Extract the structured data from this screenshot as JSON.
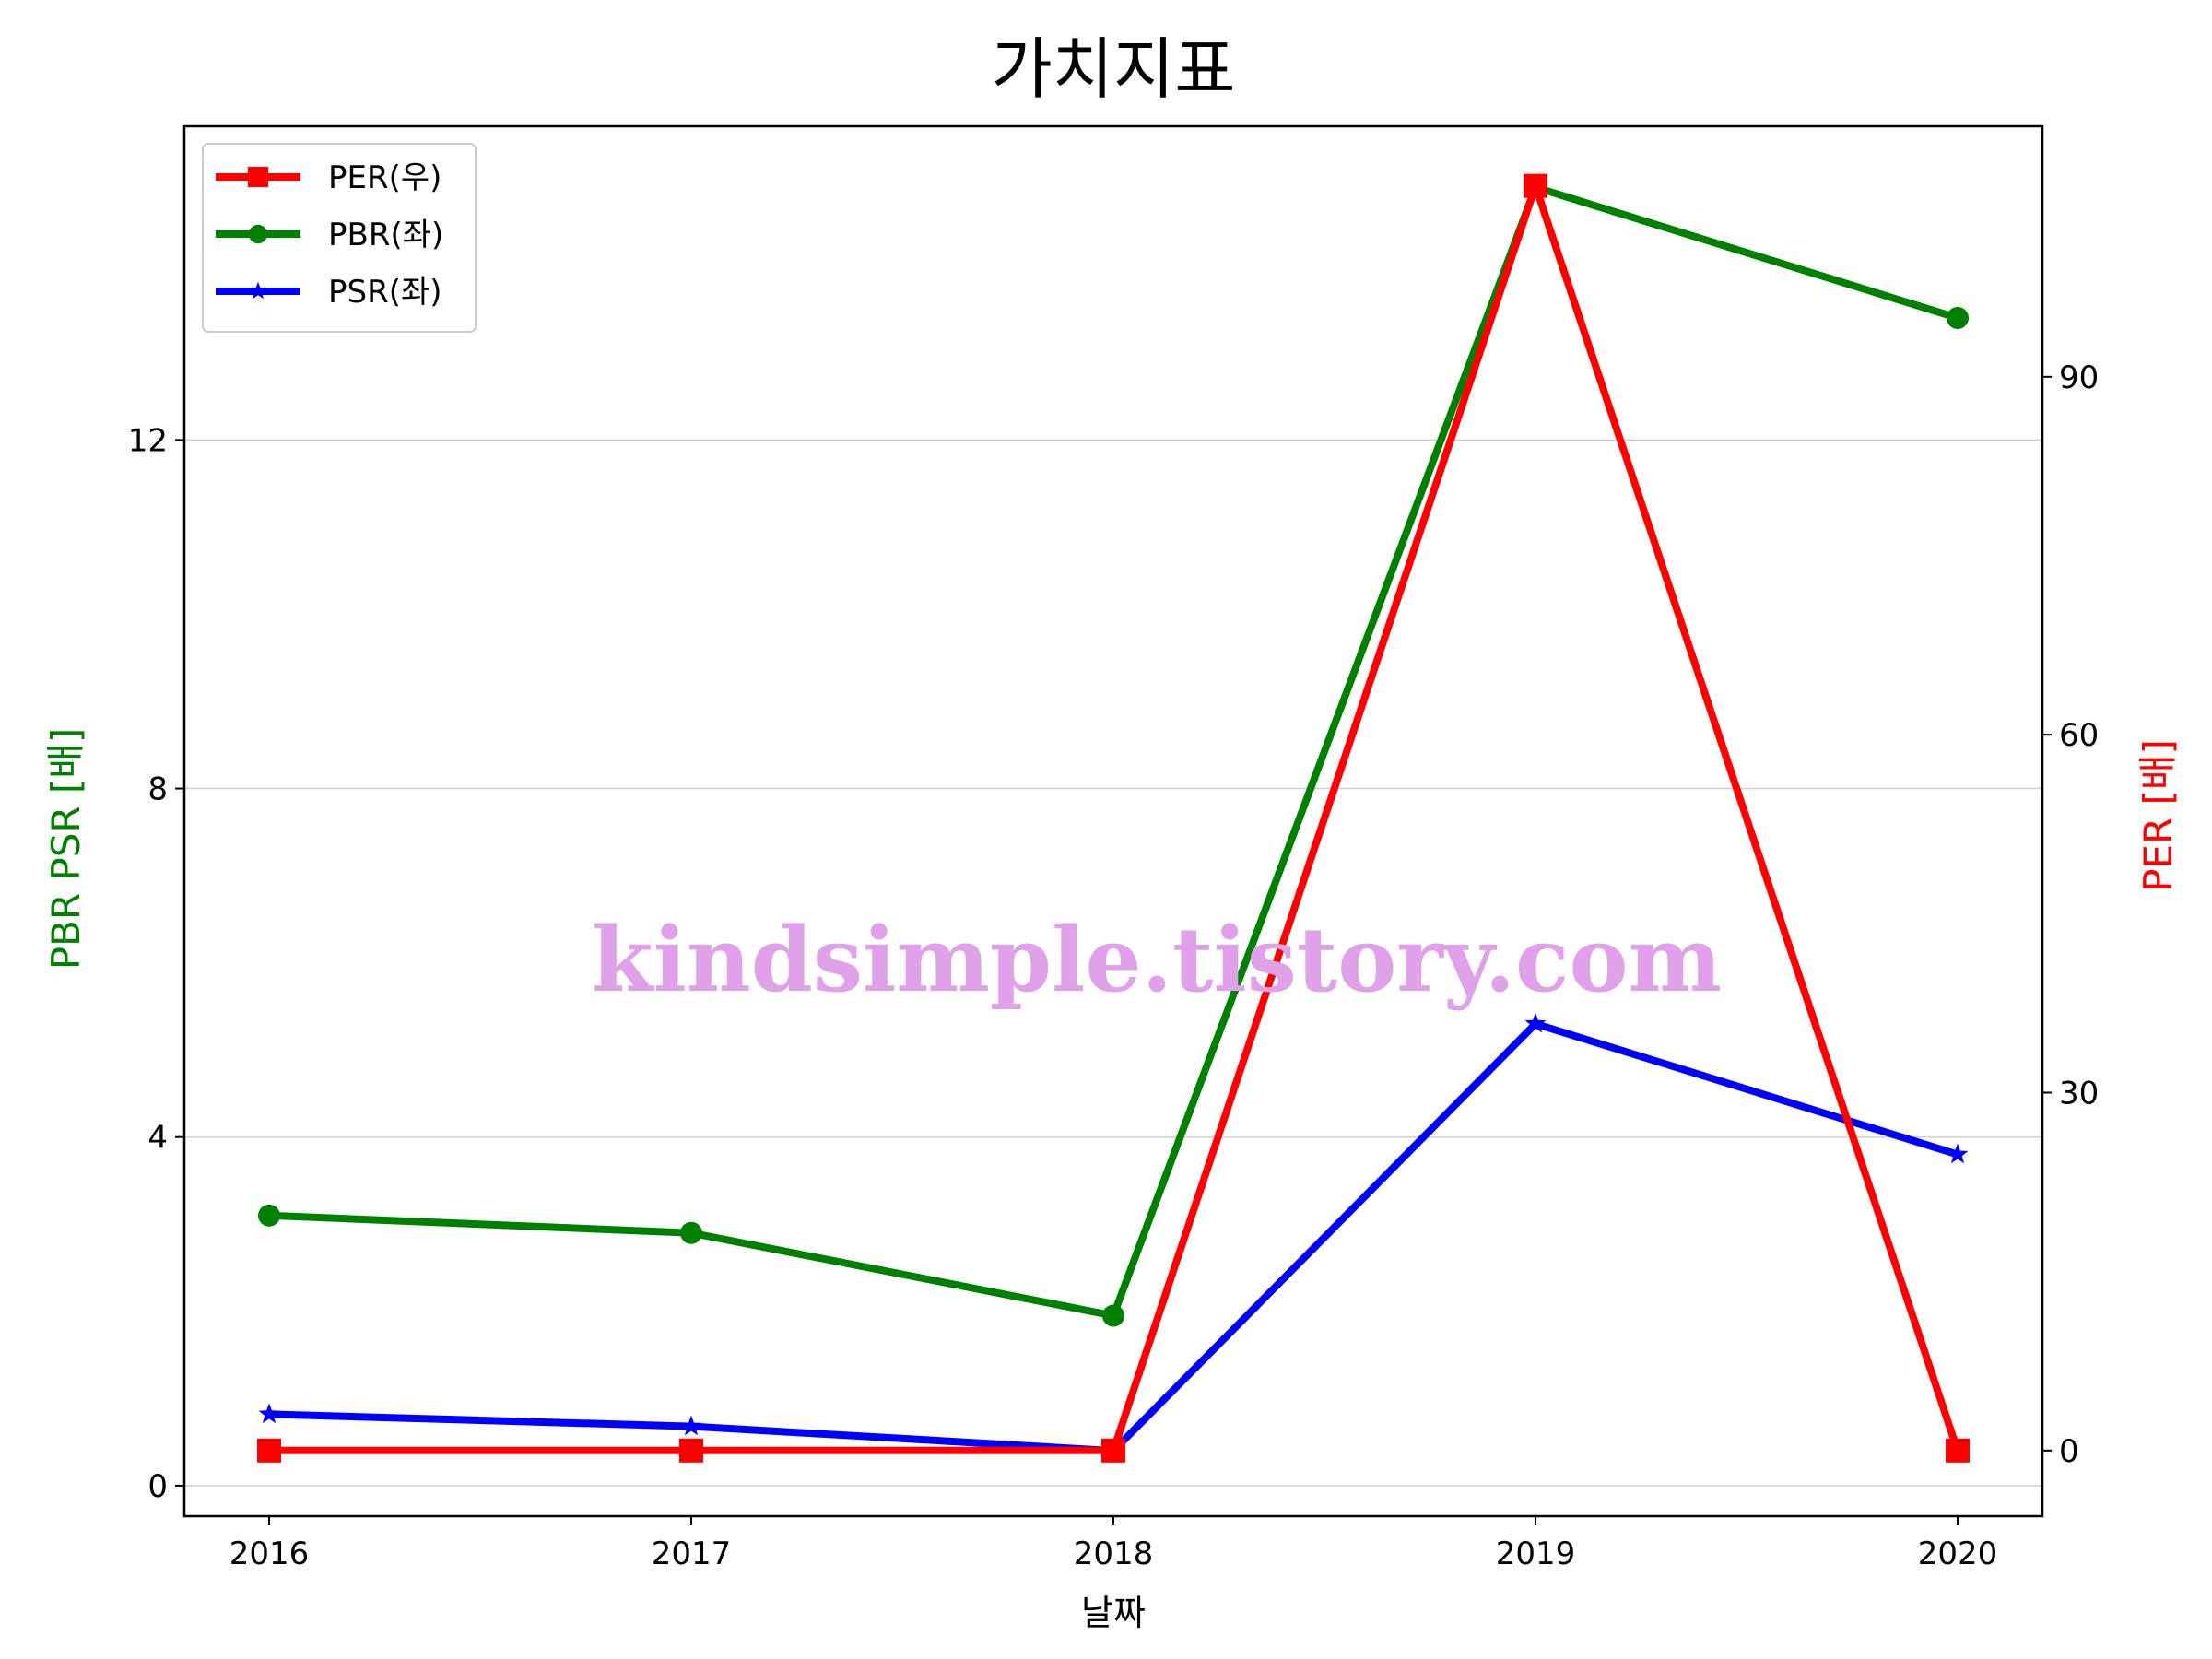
{
  "chart_data": {
    "type": "line",
    "title": "가치지표",
    "xlabel": "날짜",
    "ylabel_left": "PBR PSR [배]",
    "ylabel_right": "PER [배]",
    "x": [
      "2016",
      "2017",
      "2018",
      "2019",
      "2020"
    ],
    "left_axis": {
      "ylim": [
        -0.35,
        15.6
      ],
      "ticks": [
        0,
        4,
        8,
        12
      ],
      "tick_labels": [
        "0",
        "4",
        "8",
        "12"
      ],
      "grid": true
    },
    "right_axis": {
      "ylim": [
        -5.5,
        111
      ],
      "ticks": [
        0,
        30,
        60,
        90
      ],
      "tick_labels": [
        "0",
        "30",
        "60",
        "90"
      ]
    },
    "series": [
      {
        "name": "PER(우)",
        "axis": "right",
        "color": "#ff0000",
        "marker": "square",
        "values": [
          0,
          0,
          0,
          106,
          0
        ]
      },
      {
        "name": "PBR(좌)",
        "axis": "left",
        "color": "#008000",
        "marker": "circle",
        "values": [
          3.1,
          2.9,
          1.95,
          14.9,
          13.4
        ]
      },
      {
        "name": "PSR(좌)",
        "axis": "left",
        "color": "#0000ff",
        "marker": "star",
        "values": [
          0.82,
          0.68,
          0.4,
          5.3,
          3.8
        ]
      }
    ],
    "legend": {
      "position": "top-left"
    },
    "left_label_color": "#008000",
    "right_label_color": "#ff0000",
    "watermark": "kindsimple.tistory.com"
  }
}
